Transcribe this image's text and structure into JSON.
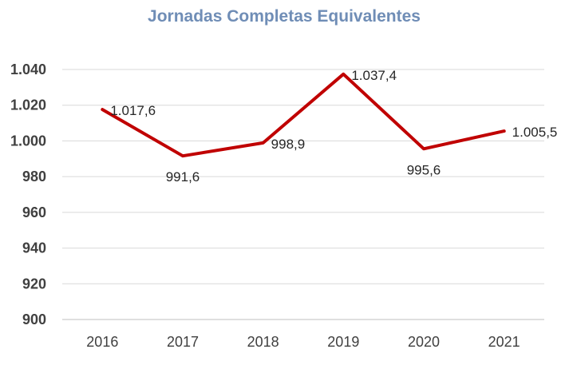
{
  "colors": {
    "title": "#6f8db6",
    "line": "#c00000",
    "grid": "#d9d9d9",
    "axis": "#bfbfbf"
  },
  "chart_data": {
    "type": "line",
    "title": "Jornadas Completas Equivalentes",
    "xlabel": "",
    "ylabel": "",
    "categories": [
      "2016",
      "2017",
      "2018",
      "2019",
      "2020",
      "2021"
    ],
    "series": [
      {
        "values": [
          1017.6,
          991.6,
          998.9,
          1037.4,
          995.6,
          1005.5
        ],
        "labels": [
          "1.017,6",
          "991,6",
          "998,9",
          "1.037,4",
          "995,6",
          "1.005,5"
        ]
      }
    ],
    "ylim": [
      900,
      1040
    ],
    "yticks": [
      900,
      920,
      940,
      960,
      980,
      1000,
      1020,
      1040
    ],
    "ytick_labels": [
      "900",
      "920",
      "940",
      "960",
      "980",
      "1.000",
      "1.020",
      "1.040"
    ],
    "grid": true,
    "legend": "none"
  }
}
